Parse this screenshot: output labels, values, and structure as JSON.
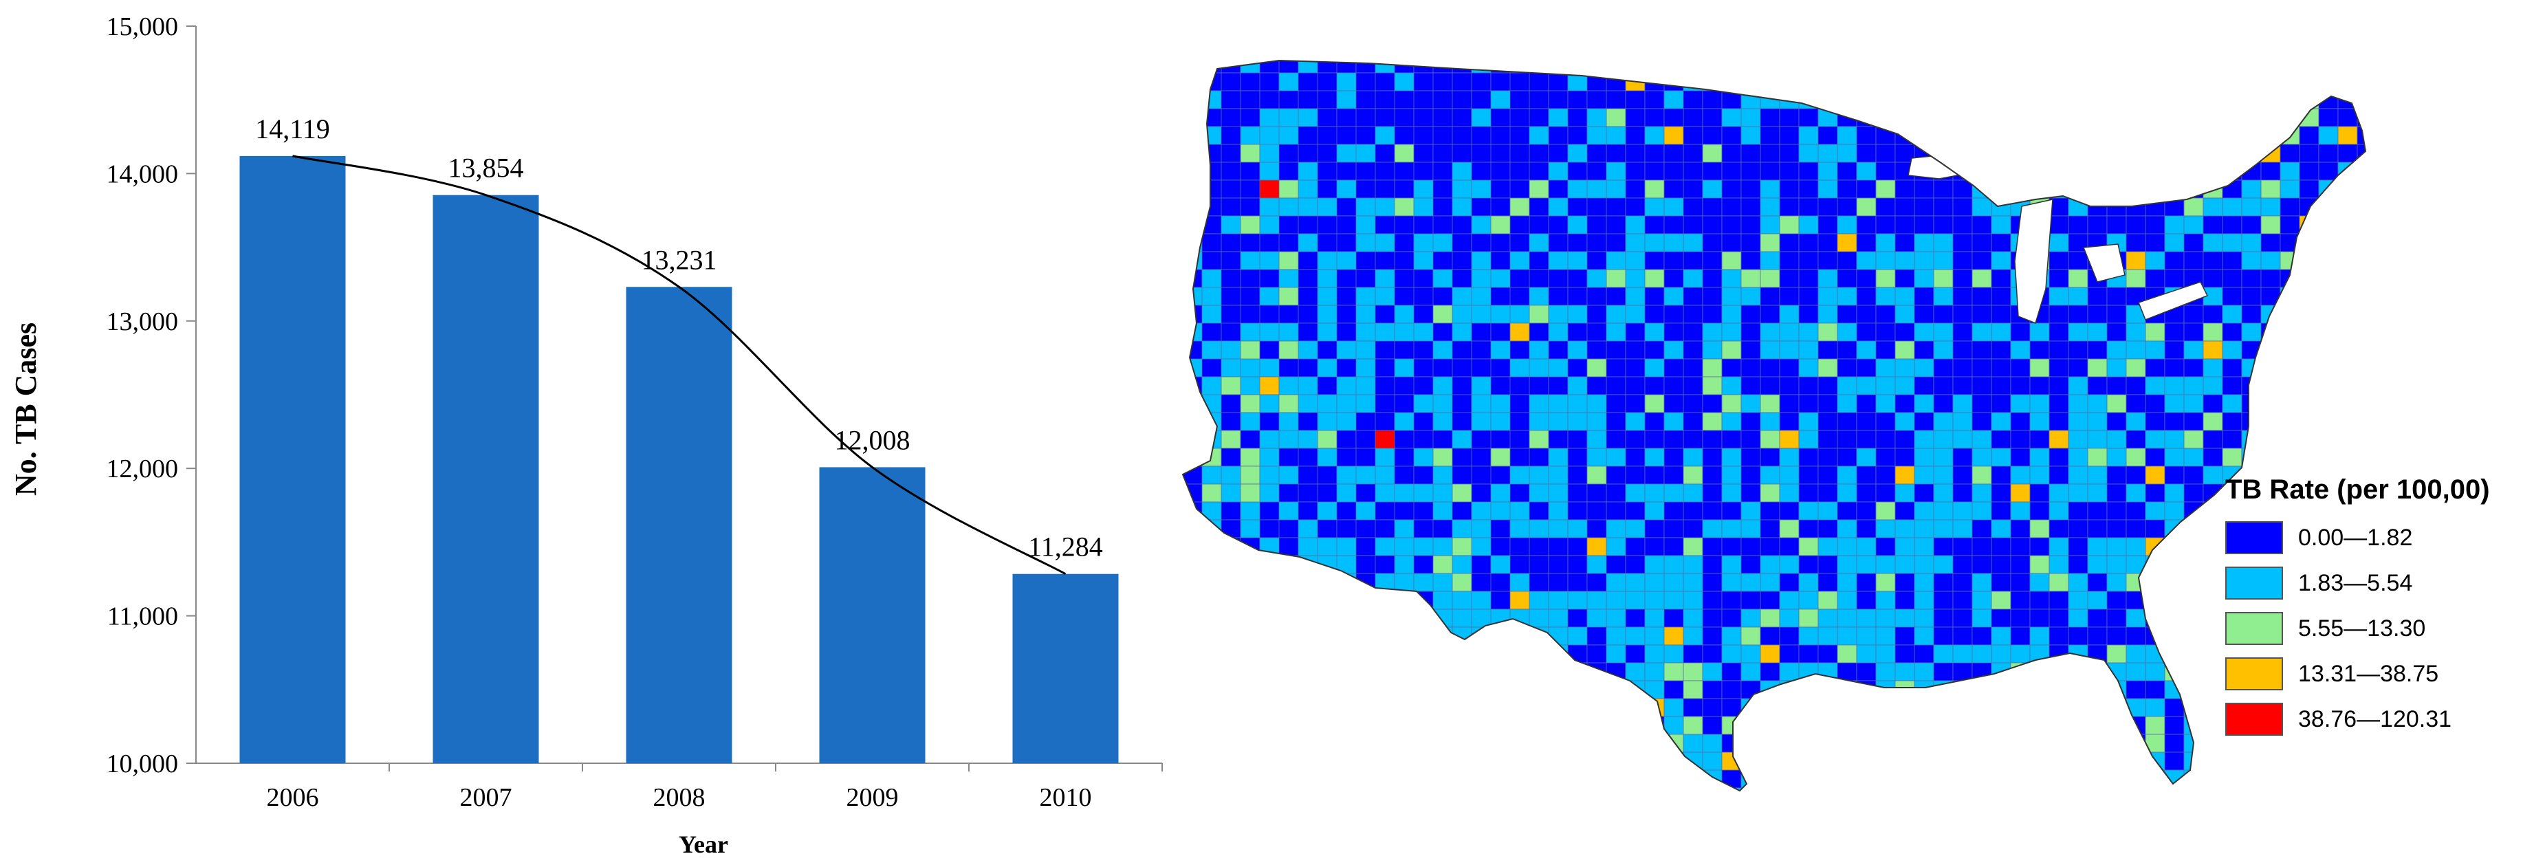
{
  "chart_data": [
    {
      "type": "bar",
      "title": "",
      "xlabel": "Year",
      "ylabel": "No. TB Cases",
      "categories": [
        "2006",
        "2007",
        "2008",
        "2009",
        "2010"
      ],
      "values": [
        14119,
        13854,
        13231,
        12008,
        11284
      ],
      "data_labels": [
        "14,119",
        "13,854",
        "13,231",
        "12,008",
        "11,284"
      ],
      "ylim": [
        10000,
        15000
      ],
      "yticks": [
        10000,
        11000,
        12000,
        13000,
        14000,
        15000
      ],
      "ytick_labels": [
        "10,000",
        "11,000",
        "12,000",
        "13,000",
        "14,000",
        "15,000"
      ],
      "bar_color": "#1b6ec2",
      "trendline": true,
      "grid": false
    },
    {
      "type": "choropleth-map",
      "region": "United States counties",
      "legend": {
        "title": "TB Rate (per 100,00)",
        "placement": "right",
        "items": [
          {
            "label": "0.00—1.82",
            "color": "#0000ff"
          },
          {
            "label": "1.83—5.54",
            "color": "#00bfff"
          },
          {
            "label": "5.55—13.30",
            "color": "#90ee90"
          },
          {
            "label": "13.31—38.75",
            "color": "#ffc000"
          },
          {
            "label": "38.76—120.31",
            "color": "#ff0000"
          }
        ]
      }
    }
  ]
}
